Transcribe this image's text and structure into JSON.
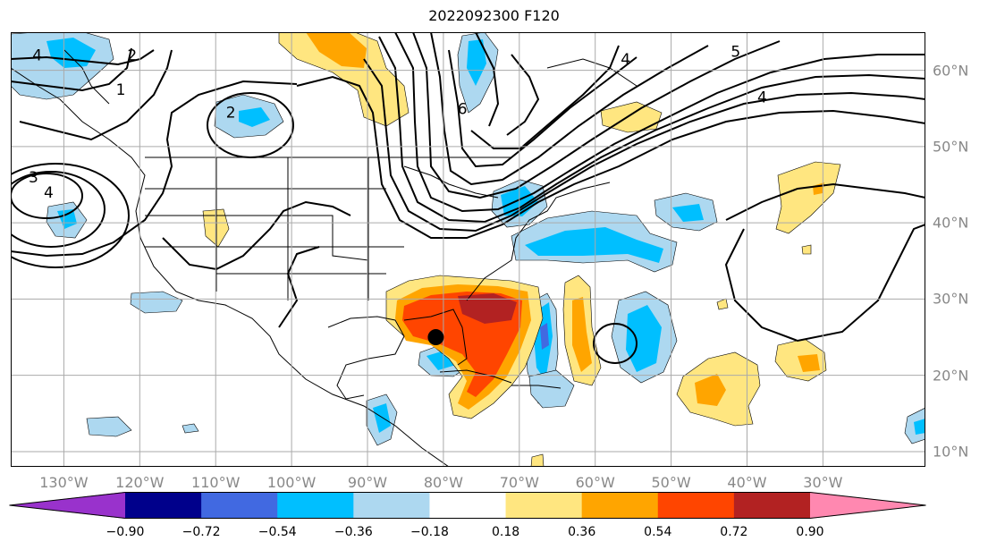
{
  "title": "2022092300 F120",
  "lon_labels": [
    {
      "text": "130°W",
      "lon": -130
    },
    {
      "text": "120°W",
      "lon": -120
    },
    {
      "text": "110°W",
      "lon": -110
    },
    {
      "text": "100°W",
      "lon": -100
    },
    {
      "text": "90°W",
      "lon": -90
    },
    {
      "text": "80°W",
      "lon": -80
    },
    {
      "text": "70°W",
      "lon": -70
    },
    {
      "text": "60°W",
      "lon": -60
    },
    {
      "text": "50°W",
      "lon": -50
    },
    {
      "text": "40°W",
      "lon": -40
    },
    {
      "text": "30°W",
      "lon": -30
    }
  ],
  "lat_labels": [
    {
      "text": "60°N",
      "lat": 60
    },
    {
      "text": "50°N",
      "lat": 50
    },
    {
      "text": "40°N",
      "lat": 40
    },
    {
      "text": "30°N",
      "lat": 30
    },
    {
      "text": "20°N",
      "lat": 20
    },
    {
      "text": "10°N",
      "lat": 10
    }
  ],
  "extent": {
    "lon_min": -137,
    "lon_max": -16.5,
    "lat_min": 8,
    "lat_max": 65
  },
  "contour_labels": [
    {
      "text": "4",
      "lon": -133.5,
      "lat": 62
    },
    {
      "text": "2",
      "lon": -121,
      "lat": 62
    },
    {
      "text": "1",
      "lon": -122.5,
      "lat": 57.5
    },
    {
      "text": "2",
      "lon": -108,
      "lat": 54.5
    },
    {
      "text": "3",
      "lon": -134,
      "lat": 46
    },
    {
      "text": "4",
      "lon": -132,
      "lat": 44
    },
    {
      "text": "6",
      "lon": -77.5,
      "lat": 55
    },
    {
      "text": "4",
      "lon": -56,
      "lat": 61.5
    },
    {
      "text": "5",
      "lon": -41.5,
      "lat": 62.5
    },
    {
      "text": "4",
      "lon": -38,
      "lat": 56.5
    }
  ],
  "storm_marker": {
    "lon": -81,
    "lat": 25,
    "color": "#000000"
  },
  "colorbar": {
    "ticks": [
      "−0.90",
      "−0.72",
      "−0.54",
      "−0.36",
      "−0.18",
      "0.18",
      "0.36",
      "0.54",
      "0.72",
      "0.90"
    ],
    "colors": [
      "#9932cc",
      "#00008b",
      "#4169e1",
      "#00bfff",
      "#add8f0",
      "#ffffff",
      "#ffe680",
      "#ffa500",
      "#ff4500",
      "#b22222",
      "#ff88b0"
    ]
  }
}
